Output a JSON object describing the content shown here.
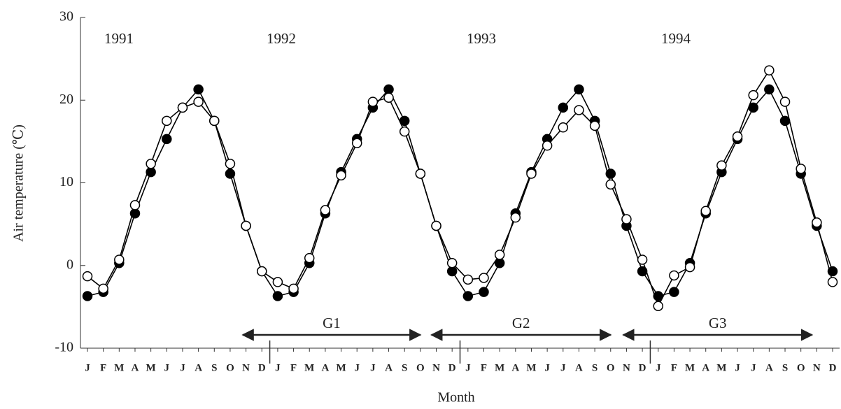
{
  "chart_data": {
    "type": "line",
    "y_label": "Air temperature (℃)",
    "x_label": "Month",
    "categories": [
      "J",
      "F",
      "M",
      "A",
      "M",
      "J",
      "J",
      "A",
      "S",
      "O",
      "N",
      "D",
      "J",
      "F",
      "M",
      "A",
      "M",
      "J",
      "J",
      "A",
      "S",
      "O",
      "N",
      "D",
      "J",
      "F",
      "M",
      "A",
      "M",
      "J",
      "J",
      "A",
      "S",
      "O",
      "N",
      "D",
      "J",
      "F",
      "M",
      "A",
      "M",
      "J",
      "J",
      "A",
      "S",
      "O",
      "N",
      "D"
    ],
    "years": [
      "1991",
      "1992",
      "1993",
      "1994"
    ],
    "periods": [
      "G1",
      "G2",
      "G3"
    ],
    "series": [
      {
        "color": "#000000",
        "fill": "#000000",
        "values": [
          -3.7,
          -3.2,
          0.3,
          6.3,
          11.3,
          15.3,
          19.1,
          21.3,
          17.5,
          11.1,
          4.8,
          -0.7,
          -3.7,
          -3.2,
          0.3,
          6.3,
          11.3,
          15.3,
          19.1,
          21.3,
          17.5,
          11.1,
          4.8,
          -0.7,
          -3.7,
          -3.2,
          0.3,
          6.3,
          11.3,
          15.3,
          19.1,
          21.3,
          17.5,
          11.1,
          4.8,
          -0.7,
          -3.7,
          -3.2,
          0.3,
          6.3,
          11.3,
          15.3,
          19.1,
          21.3,
          17.5,
          11.1,
          4.8,
          -0.7
        ]
      },
      {
        "color": "#000000",
        "fill": "#ffffff",
        "values": [
          -1.3,
          -2.8,
          0.7,
          7.3,
          12.3,
          17.5,
          19.1,
          19.8,
          17.5,
          12.3,
          4.8,
          -0.7,
          -2.0,
          -2.8,
          0.9,
          6.7,
          10.9,
          14.8,
          19.8,
          20.3,
          16.2,
          11.1,
          4.8,
          0.3,
          -1.7,
          -1.5,
          1.3,
          5.8,
          11.1,
          14.5,
          16.7,
          18.8,
          16.9,
          9.8,
          5.6,
          0.7,
          -4.9,
          -1.2,
          -0.2,
          6.6,
          12.1,
          15.6,
          20.6,
          23.6,
          19.8,
          11.7,
          5.2,
          -2.0
        ]
      }
    ],
    "ylim": [
      -10,
      30
    ],
    "yticks": [
      -10,
      0,
      10,
      20,
      30
    ]
  }
}
